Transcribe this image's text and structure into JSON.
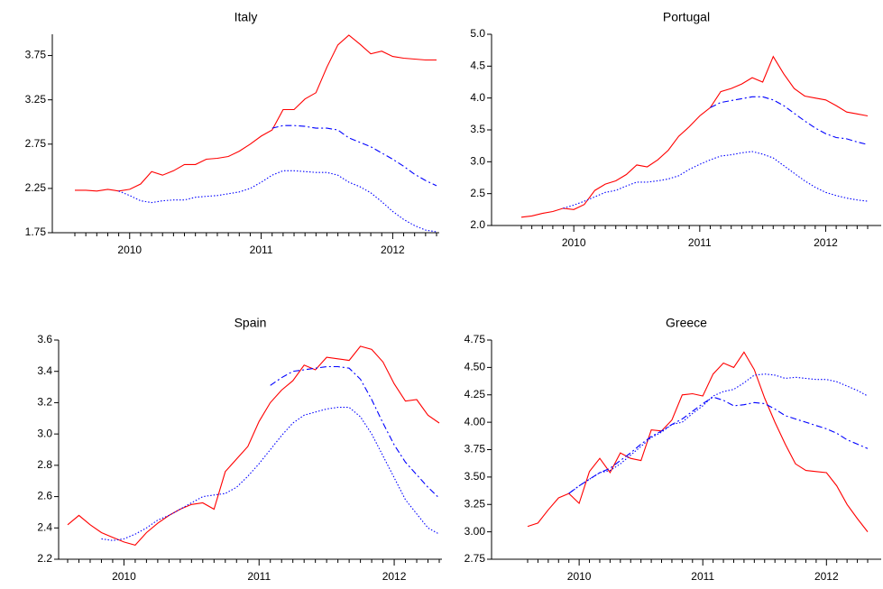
{
  "chart_data": [
    {
      "type": "line",
      "title": "Italy",
      "categories": [
        null,
        null,
        null,
        null,
        null,
        "2010",
        null,
        null,
        null,
        null,
        null,
        null,
        null,
        null,
        null,
        null,
        null,
        "2011",
        null,
        null,
        null,
        null,
        null,
        null,
        null,
        null,
        null,
        null,
        null,
        "2012",
        null,
        null,
        null,
        null
      ],
      "ylim": [
        1.75,
        3.99
      ],
      "yticks": [
        1.75,
        2.25,
        2.75,
        3.25,
        3.75
      ],
      "series": [
        {
          "color": "#ff0000",
          "dash": "solid",
          "values": [
            2.23,
            2.23,
            2.22,
            2.24,
            2.22,
            2.24,
            2.3,
            2.44,
            2.4,
            2.45,
            2.52,
            2.52,
            2.58,
            2.59,
            2.61,
            2.67,
            2.75,
            2.84,
            2.91,
            3.14,
            3.14,
            3.26,
            3.33,
            3.62,
            3.87,
            3.98,
            3.88,
            3.77,
            3.8,
            3.74,
            3.72,
            3.71,
            3.7,
            3.7
          ]
        },
        {
          "color": "#0000ff",
          "dash": "dashed",
          "values": [
            null,
            null,
            null,
            null,
            null,
            null,
            null,
            null,
            null,
            null,
            null,
            null,
            null,
            null,
            null,
            null,
            null,
            null,
            2.93,
            2.96,
            2.96,
            2.95,
            2.93,
            2.93,
            2.91,
            2.82,
            2.77,
            2.72,
            2.65,
            2.58,
            2.5,
            2.41,
            2.34,
            2.28
          ]
        },
        {
          "color": "#0000ff",
          "dash": "dotted",
          "values": [
            null,
            null,
            null,
            null,
            2.22,
            2.17,
            2.11,
            2.09,
            2.11,
            2.12,
            2.12,
            2.15,
            2.16,
            2.17,
            2.19,
            2.21,
            2.25,
            2.32,
            2.4,
            2.45,
            2.45,
            2.44,
            2.43,
            2.43,
            2.4,
            2.32,
            2.27,
            2.2,
            2.1,
            1.99,
            1.9,
            1.83,
            1.78,
            1.76
          ]
        }
      ]
    },
    {
      "type": "line",
      "title": "Portugal",
      "categories": [
        null,
        null,
        null,
        null,
        null,
        "2010",
        null,
        null,
        null,
        null,
        null,
        null,
        null,
        null,
        null,
        null,
        null,
        "2011",
        null,
        null,
        null,
        null,
        null,
        null,
        null,
        null,
        null,
        null,
        null,
        "2012",
        null,
        null,
        null,
        null
      ],
      "ylim": [
        2.0,
        5.0
      ],
      "yticks": [
        {
          "value": 2,
          "label": "2.0"
        },
        2.5,
        {
          "value": 3,
          "label": "3.0"
        },
        3.5,
        {
          "value": 4,
          "label": "4.0"
        },
        4.5,
        {
          "value": 5,
          "label": "5.0"
        }
      ],
      "series": [
        {
          "color": "#ff0000",
          "dash": "solid",
          "values": [
            2.13,
            2.15,
            2.19,
            2.22,
            2.27,
            2.25,
            2.33,
            2.55,
            2.65,
            2.7,
            2.8,
            2.95,
            2.92,
            3.03,
            3.18,
            3.4,
            3.55,
            3.72,
            3.85,
            4.1,
            4.15,
            4.22,
            4.32,
            4.25,
            4.65,
            4.38,
            4.15,
            4.03,
            4.0,
            3.97,
            3.88,
            3.78,
            3.75,
            3.72
          ]
        },
        {
          "color": "#0000ff",
          "dash": "dashed",
          "values": [
            null,
            null,
            null,
            null,
            null,
            null,
            null,
            null,
            null,
            null,
            null,
            null,
            null,
            null,
            null,
            null,
            null,
            null,
            3.85,
            3.93,
            3.96,
            3.99,
            4.02,
            4.02,
            3.97,
            3.88,
            3.76,
            3.64,
            3.53,
            3.44,
            3.38,
            3.36,
            3.31,
            3.27
          ]
        },
        {
          "color": "#0000ff",
          "dash": "dotted",
          "values": [
            null,
            null,
            null,
            null,
            2.27,
            2.32,
            2.38,
            2.45,
            2.52,
            2.55,
            2.62,
            2.68,
            2.68,
            2.7,
            2.73,
            2.78,
            2.88,
            2.96,
            3.03,
            3.09,
            3.11,
            3.14,
            3.16,
            3.12,
            3.06,
            2.94,
            2.82,
            2.7,
            2.6,
            2.52,
            2.47,
            2.43,
            2.4,
            2.38
          ]
        }
      ]
    },
    {
      "type": "line",
      "title": "Spain",
      "categories": [
        null,
        null,
        null,
        null,
        null,
        "2010",
        null,
        null,
        null,
        null,
        null,
        null,
        null,
        null,
        null,
        null,
        null,
        "2011",
        null,
        null,
        null,
        null,
        null,
        null,
        null,
        null,
        null,
        null,
        null,
        "2012",
        null,
        null,
        null,
        null
      ],
      "ylim": [
        2.2,
        3.6
      ],
      "yticks": [
        2.2,
        2.4,
        2.6,
        2.8,
        {
          "value": 3,
          "label": "3.0"
        },
        3.2,
        3.4,
        3.6
      ],
      "series": [
        {
          "color": "#ff0000",
          "dash": "solid",
          "values": [
            2.42,
            2.48,
            2.42,
            2.37,
            2.34,
            2.31,
            2.29,
            2.37,
            2.43,
            2.48,
            2.52,
            2.55,
            2.56,
            2.52,
            2.76,
            2.84,
            2.92,
            3.08,
            3.2,
            3.28,
            3.34,
            3.44,
            3.41,
            3.49,
            3.48,
            3.47,
            3.56,
            3.54,
            3.46,
            3.32,
            3.21,
            3.22,
            3.12,
            3.07
          ]
        },
        {
          "color": "#0000ff",
          "dash": "dashed",
          "values": [
            null,
            null,
            null,
            null,
            null,
            null,
            null,
            null,
            null,
            null,
            null,
            null,
            null,
            null,
            null,
            null,
            null,
            null,
            3.31,
            3.36,
            3.4,
            3.41,
            3.42,
            3.43,
            3.43,
            3.42,
            3.35,
            3.22,
            3.07,
            2.93,
            2.82,
            2.74,
            2.66,
            2.59
          ]
        },
        {
          "color": "#0000ff",
          "dash": "dotted",
          "values": [
            null,
            null,
            null,
            2.33,
            2.32,
            2.33,
            2.36,
            2.4,
            2.45,
            2.48,
            2.52,
            2.56,
            2.6,
            2.61,
            2.62,
            2.66,
            2.73,
            2.81,
            2.9,
            2.99,
            3.07,
            3.12,
            3.14,
            3.16,
            3.17,
            3.17,
            3.11,
            3.0,
            2.86,
            2.72,
            2.58,
            2.49,
            2.4,
            2.36
          ]
        }
      ]
    },
    {
      "type": "line",
      "title": "Greece",
      "categories": [
        null,
        null,
        null,
        null,
        null,
        "2010",
        null,
        null,
        null,
        null,
        null,
        null,
        null,
        null,
        null,
        null,
        null,
        "2011",
        null,
        null,
        null,
        null,
        null,
        null,
        null,
        null,
        null,
        null,
        null,
        "2012",
        null,
        null,
        null,
        null
      ],
      "ylim": [
        2.75,
        4.75
      ],
      "yticks": [
        2.75,
        {
          "value": 3,
          "label": "3.00"
        },
        3.25,
        {
          "value": 3.5,
          "label": "3.50"
        },
        3.75,
        {
          "value": 4,
          "label": "4.00"
        },
        4.25,
        {
          "value": 4.5,
          "label": "4.50"
        },
        4.75
      ],
      "series": [
        {
          "color": "#ff0000",
          "dash": "solid",
          "values": [
            3.05,
            3.08,
            3.2,
            3.31,
            3.35,
            3.26,
            3.55,
            3.67,
            3.54,
            3.72,
            3.67,
            3.65,
            3.93,
            3.92,
            4.02,
            4.25,
            4.26,
            4.24,
            4.44,
            4.54,
            4.5,
            4.64,
            4.48,
            4.22,
            4.0,
            3.8,
            3.62,
            3.56,
            3.55,
            3.54,
            3.42,
            3.25,
            3.12,
            3.0
          ]
        },
        {
          "color": "#0000ff",
          "dash": "dashed",
          "values": [
            null,
            null,
            null,
            null,
            3.35,
            3.42,
            3.48,
            3.54,
            3.58,
            3.65,
            3.72,
            3.8,
            3.87,
            3.92,
            3.98,
            4.03,
            4.1,
            4.17,
            4.23,
            4.2,
            4.15,
            4.16,
            4.18,
            4.17,
            4.12,
            4.06,
            4.03,
            4.0,
            3.97,
            3.94,
            3.9,
            3.84,
            3.8,
            3.76
          ]
        },
        {
          "color": "#0000ff",
          "dash": "dotted",
          "values": [
            null,
            null,
            null,
            null,
            3.35,
            3.42,
            3.48,
            3.54,
            3.56,
            3.62,
            3.7,
            3.78,
            3.86,
            3.91,
            3.98,
            4.0,
            4.08,
            4.15,
            4.24,
            4.28,
            4.3,
            4.36,
            4.43,
            4.44,
            4.43,
            4.4,
            4.41,
            4.4,
            4.39,
            4.39,
            4.37,
            4.33,
            4.29,
            4.24
          ]
        }
      ]
    }
  ]
}
